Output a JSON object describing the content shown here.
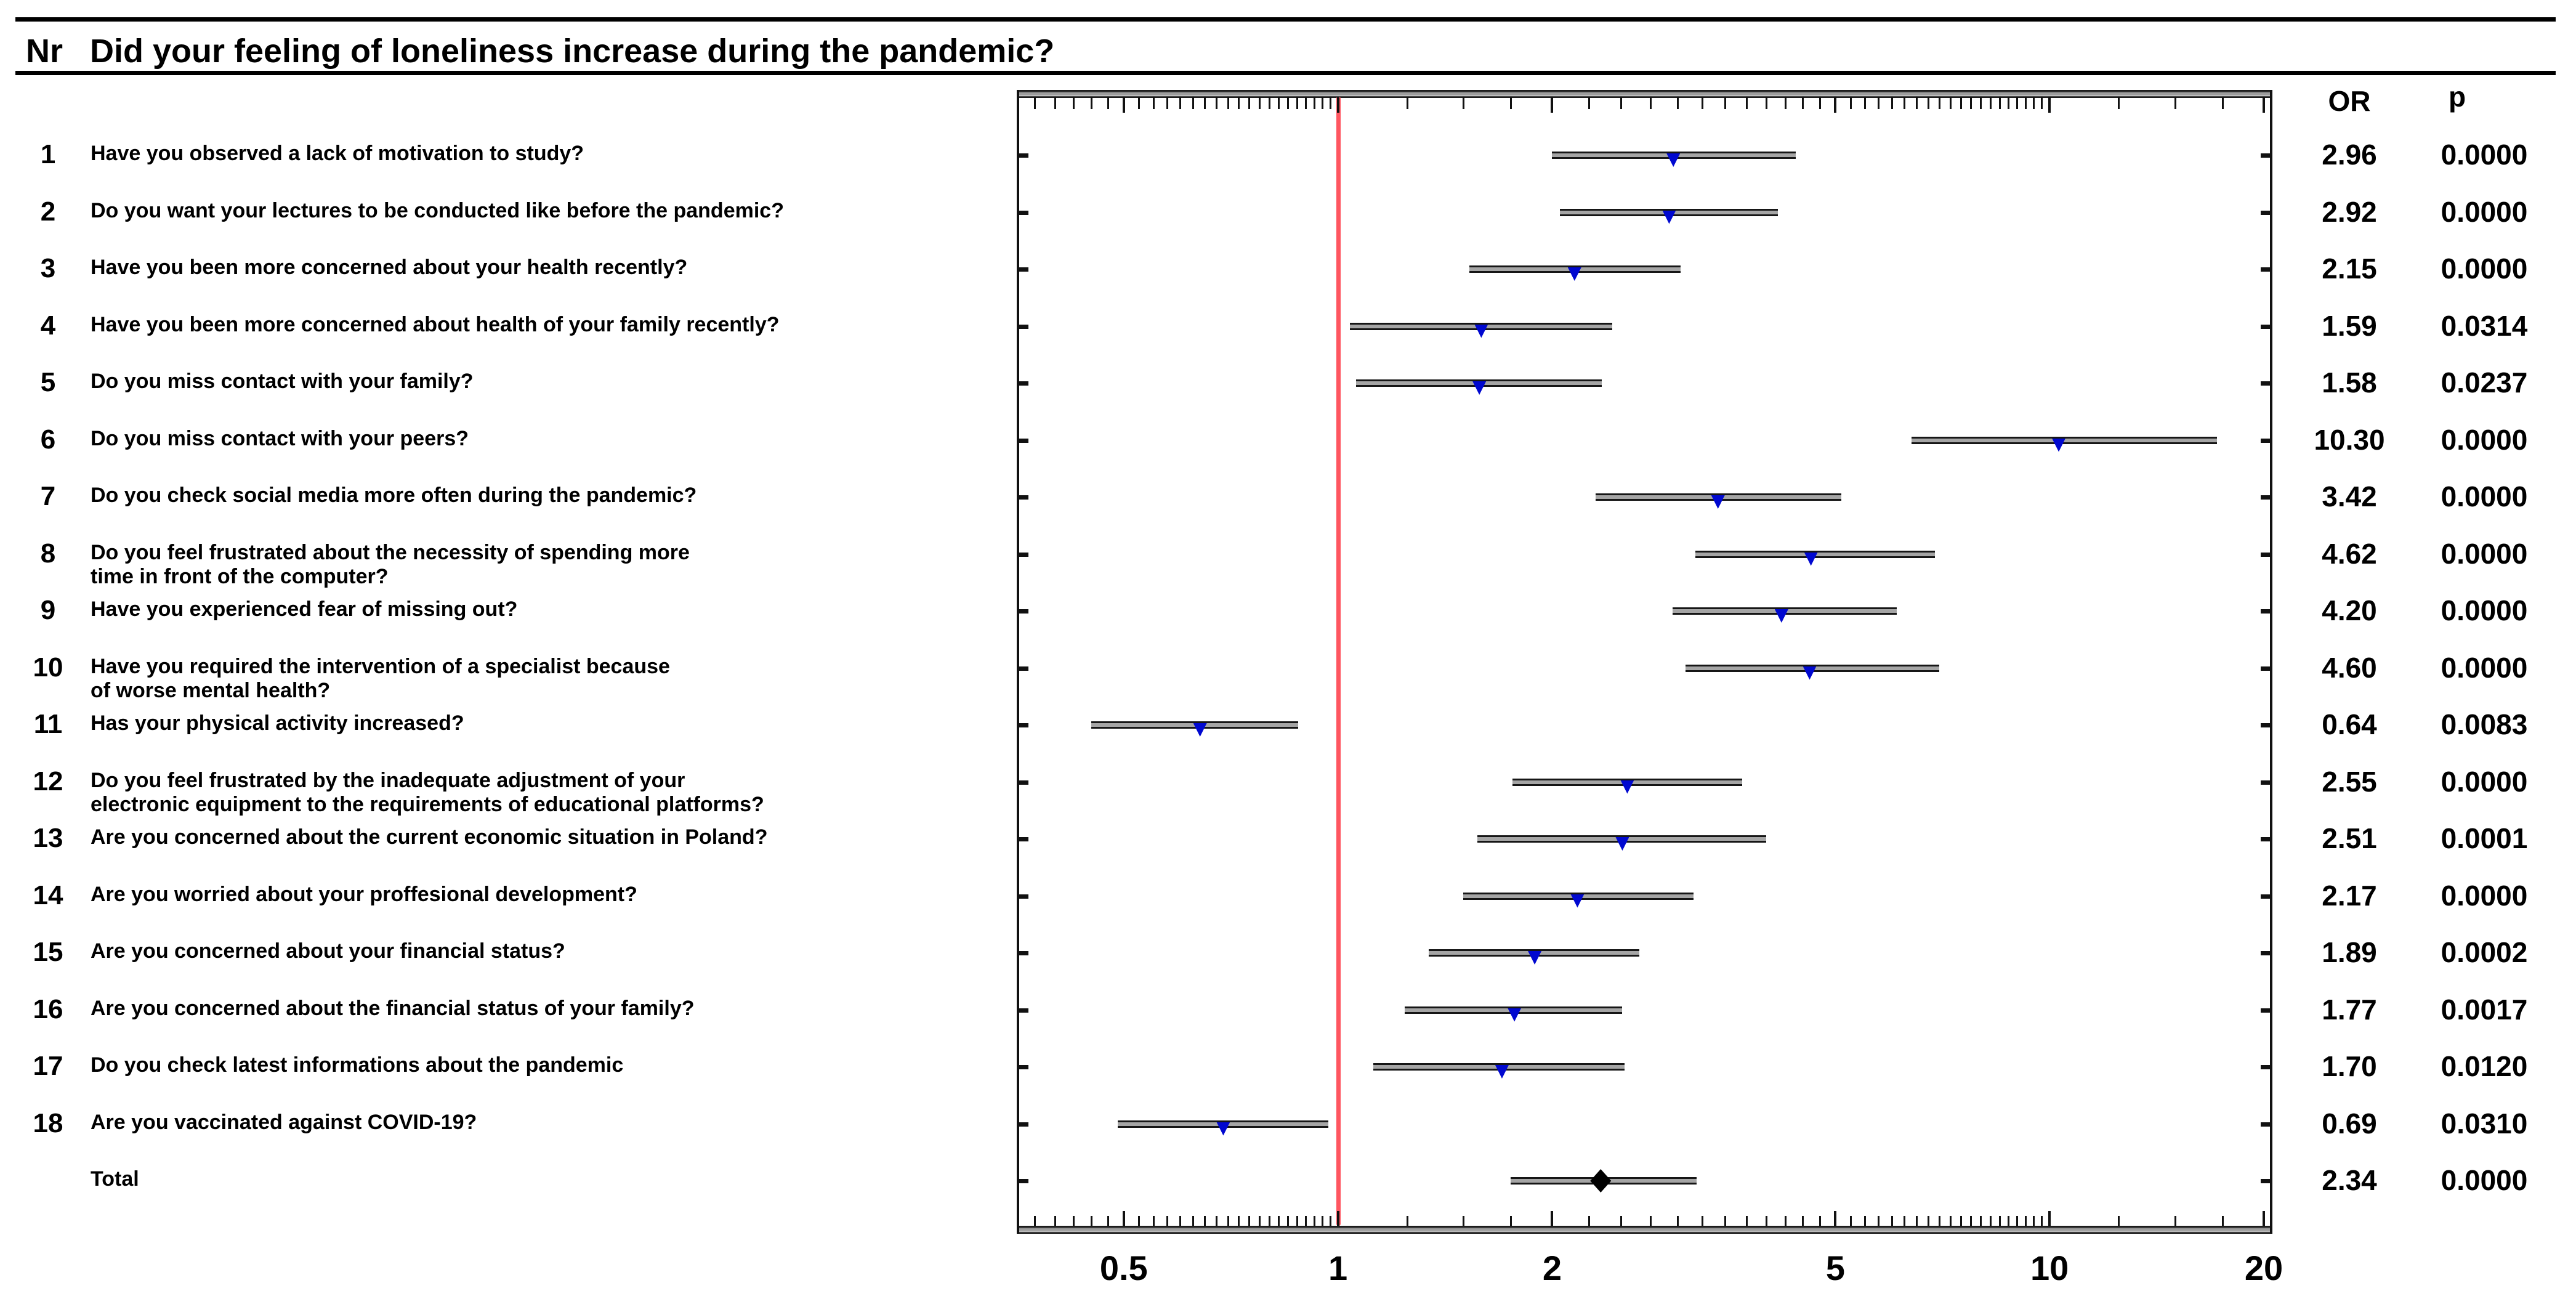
{
  "header": {
    "nr_label": "Nr",
    "title": "Did your feeling of loneliness increase during the pandemic?"
  },
  "columns": {
    "or_label": "OR",
    "p_label": "p"
  },
  "colors": {
    "reference_line": "#ff5660",
    "marker_blue": "#0008d0",
    "total_diamond": "#000000",
    "ci_bar_gray": "#a5a5a5",
    "frame_black": "#111111"
  },
  "chart_data": {
    "type": "forest-plot",
    "title": "Did your feeling of loneliness increase during the pandemic?",
    "x_axis": {
      "scale": "log",
      "range": [
        0.3565,
        20.4
      ],
      "reference_line": 1,
      "ticks": [
        0.5,
        1,
        2,
        5,
        10,
        20
      ],
      "tick_labels": [
        "0.5",
        "1",
        "2",
        "5",
        "10",
        "20"
      ],
      "minor_tick_segments": [
        {
          "from": 0.375,
          "to": 0.975,
          "step": 0.025
        },
        {
          "from": 1.25,
          "to": 9.75,
          "step": 0.25
        },
        {
          "from": 12.5,
          "to": 17.5,
          "step": 2.5
        }
      ]
    },
    "rows": [
      {
        "nr": "1",
        "question": "Have you observed a lack of motivation to study?",
        "or": 2.96,
        "or_text": "2.96",
        "ci_low": 2.0,
        "ci_high": 4.4,
        "p": "0.0000"
      },
      {
        "nr": "2",
        "question": "Do you want your lectures to be conducted like before the pandemic?",
        "or": 2.92,
        "or_text": "2.92",
        "ci_low": 2.05,
        "ci_high": 4.15,
        "p": "0.0000"
      },
      {
        "nr": "3",
        "question": "Have you been more concerned about your health recently?",
        "or": 2.15,
        "or_text": "2.15",
        "ci_low": 1.53,
        "ci_high": 3.03,
        "p": "0.0000"
      },
      {
        "nr": "4",
        "question": "Have you been more concerned about health of your family recently?",
        "or": 1.59,
        "or_text": "1.59",
        "ci_low": 1.04,
        "ci_high": 2.43,
        "p": "0.0314"
      },
      {
        "nr": "5",
        "question": "Do you miss contact with your family?",
        "or": 1.58,
        "or_text": "1.58",
        "ci_low": 1.06,
        "ci_high": 2.35,
        "p": "0.0237"
      },
      {
        "nr": "6",
        "question": "Do you miss contact with your peers?",
        "or": 10.3,
        "or_text": "10.30",
        "ci_low": 6.4,
        "ci_high": 17.2,
        "p": "0.0000"
      },
      {
        "nr": "7",
        "question": "Do you check social media more often during the pandemic?",
        "or": 3.42,
        "or_text": "3.42",
        "ci_low": 2.3,
        "ci_high": 5.1,
        "p": "0.0000"
      },
      {
        "nr": "8",
        "question": "Do you feel frustrated about the necessity of spending more\ntime in front of the computer?",
        "or": 4.62,
        "or_text": "4.62",
        "ci_low": 3.18,
        "ci_high": 6.9,
        "p": "0.0000"
      },
      {
        "nr": "9",
        "question": "Have you experienced fear of missing out?",
        "or": 4.2,
        "or_text": "4.20",
        "ci_low": 2.95,
        "ci_high": 6.1,
        "p": "0.0000"
      },
      {
        "nr": "10",
        "question": "Have you required the intervention of a specialist because\nof worse mental health?",
        "or": 4.6,
        "or_text": "4.60",
        "ci_low": 3.08,
        "ci_high": 7.0,
        "p": "0.0000"
      },
      {
        "nr": "11",
        "question": "Has  your physical activity increased?",
        "or": 0.64,
        "or_text": "0.64",
        "ci_low": 0.45,
        "ci_high": 0.88,
        "p": "0.0083"
      },
      {
        "nr": "12",
        "question": "Do you feel frustrated by the inadequate adjustment of your\nelectronic equipment  to the requirements of educational platforms?",
        "or": 2.55,
        "or_text": "2.55",
        "ci_low": 1.76,
        "ci_high": 3.7,
        "p": "0.0000"
      },
      {
        "nr": "13",
        "question": "Are you concerned about the current economic situation in Poland?",
        "or": 2.51,
        "or_text": "2.51",
        "ci_low": 1.57,
        "ci_high": 4.0,
        "p": "0.0001"
      },
      {
        "nr": "14",
        "question": "Are you worried about your proffesional development?",
        "or": 2.17,
        "or_text": "2.17",
        "ci_low": 1.5,
        "ci_high": 3.16,
        "p": "0.0000"
      },
      {
        "nr": "15",
        "question": "Are you concerned about your financial status?",
        "or": 1.89,
        "or_text": "1.89",
        "ci_low": 1.34,
        "ci_high": 2.65,
        "p": "0.0002"
      },
      {
        "nr": "16",
        "question": "Are you concerned about the financial status of your family?",
        "or": 1.77,
        "or_text": "1.77",
        "ci_low": 1.24,
        "ci_high": 2.51,
        "p": "0.0017"
      },
      {
        "nr": "17",
        "question": "Do you check latest informations about the pandemic",
        "or": 1.7,
        "or_text": "1.70",
        "ci_low": 1.12,
        "ci_high": 2.53,
        "p": "0.0120"
      },
      {
        "nr": "18",
        "question": "Are you vaccinated against COVID-19?",
        "or": 0.69,
        "or_text": "0.69",
        "ci_low": 0.49,
        "ci_high": 0.97,
        "p": "0.0310"
      },
      {
        "nr": "",
        "question": "Total",
        "is_total": true,
        "or": 2.34,
        "or_text": "2.34",
        "ci_low": 1.75,
        "ci_high": 3.19,
        "p": "0.0000"
      }
    ]
  }
}
